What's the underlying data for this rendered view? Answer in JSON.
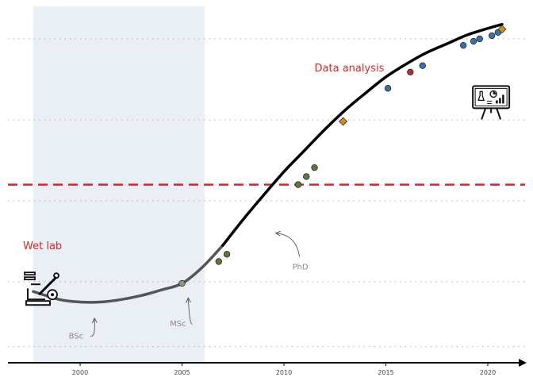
{
  "chart_data": {
    "type": "line",
    "title": "",
    "xlabel": "",
    "ylabel": "",
    "xlim": [
      1996.5,
      2022
    ],
    "ylim": [
      0,
      4.4
    ],
    "x_ticks": [
      2000,
      2005,
      2010,
      2015,
      2020
    ],
    "x_tick_labels": [
      "2000",
      "2005",
      "2010",
      "2015",
      "2020"
    ],
    "grid": "horizontal dotted",
    "threshold_line": {
      "y": 2.2,
      "style": "dashed",
      "color": "#d62728"
    },
    "shaded_region": {
      "x_start": 1997.7,
      "x_end": 2006.1,
      "color": "#e9eff5"
    },
    "region_labels": [
      {
        "text": "Data analysis",
        "x": 2011.5,
        "y": 3.6
      },
      {
        "text": "Wet lab",
        "x": 1997.2,
        "y": 1.4
      }
    ],
    "curve": {
      "x": [
        1997.7,
        1999,
        2000,
        2001,
        2002,
        2003,
        2004,
        2005,
        2006,
        2007,
        2008,
        2009,
        2010,
        2011,
        2012,
        2013,
        2014,
        2015,
        2016,
        2017,
        2018,
        2019,
        2020,
        2020.7
      ],
      "y": [
        0.88,
        0.78,
        0.75,
        0.75,
        0.78,
        0.83,
        0.9,
        0.98,
        1.18,
        1.45,
        1.77,
        2.07,
        2.36,
        2.62,
        2.88,
        3.12,
        3.33,
        3.53,
        3.69,
        3.83,
        3.94,
        4.05,
        4.13,
        4.18
      ],
      "early_color": "#555555",
      "late_color": "#000000",
      "split_x": 2006.1
    },
    "points": [
      {
        "x": 2005.0,
        "y": 0.98,
        "color": "#8a9a7a",
        "marker": "circle"
      },
      {
        "x": 2006.8,
        "y": 1.25,
        "color": "#5b7a3a",
        "marker": "circle"
      },
      {
        "x": 2007.2,
        "y": 1.34,
        "color": "#5b7a3a",
        "marker": "circle"
      },
      {
        "x": 2010.7,
        "y": 2.2,
        "color": "#5b7a3a",
        "marker": "circle"
      },
      {
        "x": 2011.1,
        "y": 2.3,
        "color": "#5b7a3a",
        "marker": "circle"
      },
      {
        "x": 2011.5,
        "y": 2.41,
        "color": "#5b7a3a",
        "marker": "circle"
      },
      {
        "x": 2012.9,
        "y": 2.98,
        "color": "#d48a1f",
        "marker": "diamond"
      },
      {
        "x": 2015.1,
        "y": 3.39,
        "color": "#3a6fa8",
        "marker": "circle"
      },
      {
        "x": 2016.2,
        "y": 3.59,
        "color": "#b03030",
        "marker": "circle"
      },
      {
        "x": 2016.8,
        "y": 3.67,
        "color": "#3a6fa8",
        "marker": "circle"
      },
      {
        "x": 2018.8,
        "y": 3.92,
        "color": "#3a6fa8",
        "marker": "circle"
      },
      {
        "x": 2019.3,
        "y": 3.97,
        "color": "#3a6fa8",
        "marker": "circle"
      },
      {
        "x": 2019.6,
        "y": 4.0,
        "color": "#3a6fa8",
        "marker": "circle"
      },
      {
        "x": 2020.2,
        "y": 4.04,
        "color": "#3a6fa8",
        "marker": "circle"
      },
      {
        "x": 2020.5,
        "y": 4.08,
        "color": "#3a6fa8",
        "marker": "circle"
      },
      {
        "x": 2020.7,
        "y": 4.12,
        "color": "#d48a1f",
        "marker": "diamond"
      }
    ],
    "annotations": [
      {
        "text": "BSc",
        "x": 1999.8,
        "y": 0.3,
        "arrow_to": [
          2000.7,
          0.55
        ]
      },
      {
        "text": "MSc",
        "x": 2004.8,
        "y": 0.45,
        "arrow_to": [
          2005.3,
          0.8
        ]
      },
      {
        "text": "PhD",
        "x": 2010.8,
        "y": 1.15,
        "arrow_to": [
          2009.6,
          1.6
        ]
      }
    ],
    "icons": [
      {
        "name": "microscope-lab-icon",
        "x": 1997.9,
        "y": 0.9
      },
      {
        "name": "presentation-board-icon",
        "x": 2020.2,
        "y": 3.3
      }
    ]
  }
}
